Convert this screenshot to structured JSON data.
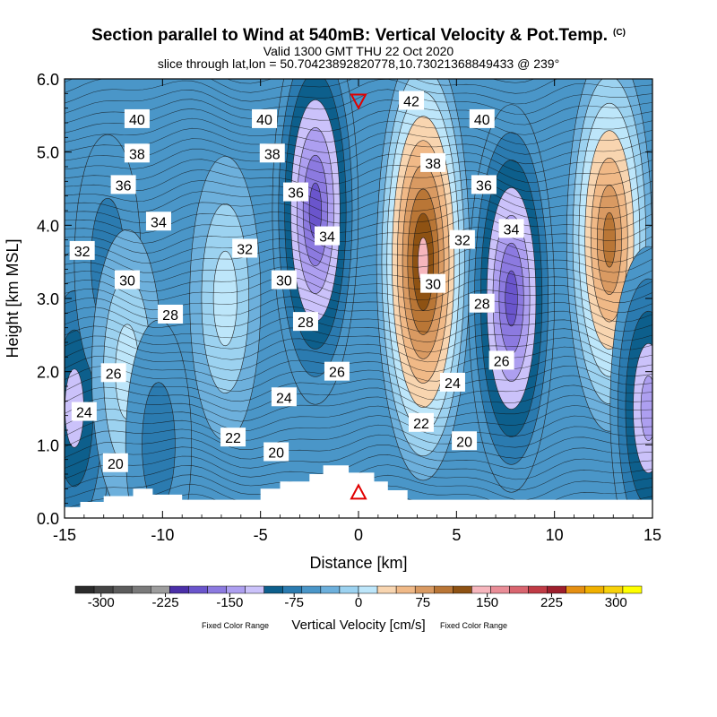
{
  "header": {
    "title": "Section parallel to Wind at 540mB: Vertical Velocity & Pot.Temp.",
    "copyright": "(C)",
    "valid": "Valid 1300 GMT THU 22 Oct 2020",
    "slice": "slice through lat,lon = 50.70423892820778,10.73021368849433 @ 239°"
  },
  "chart_data": {
    "type": "contour",
    "xlabel": "Distance [km]",
    "ylabel": "Height [km MSL]",
    "xlim": [
      -15,
      15
    ],
    "ylim": [
      0,
      6
    ],
    "xticks": [
      "-15",
      "-10",
      "-5",
      "0",
      "5",
      "10",
      "15"
    ],
    "yticks": [
      "0.0",
      "1.0",
      "2.0",
      "3.0",
      "4.0",
      "5.0",
      "6.0"
    ],
    "markers": {
      "down_triangle": {
        "x": 0,
        "y": 5.7
      },
      "up_triangle": {
        "x": 0,
        "y": 0.35
      }
    },
    "vertical_velocity_cores_cm_s": [
      {
        "x": -14.5,
        "y": 1.5,
        "value": -100
      },
      {
        "x": -12.8,
        "y": 3.5,
        "value": -40
      },
      {
        "x": -11.8,
        "y": 2.0,
        "value": 70
      },
      {
        "x": -10.2,
        "y": 1.0,
        "value": -35
      },
      {
        "x": -6.8,
        "y": 3.0,
        "value": 70
      },
      {
        "x": -2.2,
        "y": 4.2,
        "value": -175
      },
      {
        "x": 3.3,
        "y": 3.5,
        "value": 225
      },
      {
        "x": 7.8,
        "y": 3.0,
        "value": -175
      },
      {
        "x": 12.8,
        "y": 3.8,
        "value": 170
      },
      {
        "x": 14.8,
        "y": 1.5,
        "value": -110
      }
    ],
    "theta_labels": [
      {
        "text": "40",
        "x": -11.3,
        "y": 5.45
      },
      {
        "text": "38",
        "x": -11.3,
        "y": 4.98
      },
      {
        "text": "36",
        "x": -12.0,
        "y": 4.55
      },
      {
        "text": "34",
        "x": -10.2,
        "y": 4.05
      },
      {
        "text": "32",
        "x": -14.1,
        "y": 3.65
      },
      {
        "text": "30",
        "x": -11.8,
        "y": 3.25
      },
      {
        "text": "28",
        "x": -9.6,
        "y": 2.78
      },
      {
        "text": "26",
        "x": -12.5,
        "y": 1.98
      },
      {
        "text": "24",
        "x": -14.0,
        "y": 1.45
      },
      {
        "text": "20",
        "x": -12.4,
        "y": 0.75
      },
      {
        "text": "32",
        "x": -5.8,
        "y": 3.68
      },
      {
        "text": "30",
        "x": -3.8,
        "y": 3.25
      },
      {
        "text": "28",
        "x": -2.7,
        "y": 2.68
      },
      {
        "text": "24",
        "x": -3.8,
        "y": 1.65
      },
      {
        "text": "22",
        "x": -6.4,
        "y": 1.1
      },
      {
        "text": "20",
        "x": -4.2,
        "y": 0.9
      },
      {
        "text": "26",
        "x": -1.1,
        "y": 2.0
      },
      {
        "text": "40",
        "x": -4.8,
        "y": 5.45
      },
      {
        "text": "38",
        "x": -4.4,
        "y": 4.98
      },
      {
        "text": "36",
        "x": -3.2,
        "y": 4.45
      },
      {
        "text": "34",
        "x": -1.6,
        "y": 3.85
      },
      {
        "text": "42",
        "x": 2.7,
        "y": 5.7
      },
      {
        "text": "38",
        "x": 3.8,
        "y": 4.85
      },
      {
        "text": "32",
        "x": 5.3,
        "y": 3.8
      },
      {
        "text": "30",
        "x": 3.8,
        "y": 3.2
      },
      {
        "text": "24",
        "x": 4.8,
        "y": 1.85
      },
      {
        "text": "22",
        "x": 3.2,
        "y": 1.3
      },
      {
        "text": "20",
        "x": 5.4,
        "y": 1.05
      },
      {
        "text": "40",
        "x": 6.3,
        "y": 5.45
      },
      {
        "text": "36",
        "x": 6.4,
        "y": 4.55
      },
      {
        "text": "34",
        "x": 7.8,
        "y": 3.95
      },
      {
        "text": "28",
        "x": 6.3,
        "y": 2.93
      },
      {
        "text": "26",
        "x": 7.3,
        "y": 2.15
      }
    ]
  },
  "colorbar": {
    "label": "Vertical Velocity [cm/s]",
    "fixed_left": "Fixed Color Range",
    "fixed_right": "Fixed Color Range",
    "ticks": [
      "-300",
      "-225",
      "-150",
      "-75",
      "0",
      "75",
      "150",
      "225",
      "300"
    ],
    "range": [
      -330,
      330
    ],
    "step": 25,
    "colors": [
      "#2b2b2b",
      "#444444",
      "#5c5c5c",
      "#7a7a7a",
      "#9d9d9d",
      "#4b2fa8",
      "#6a55cc",
      "#8c7ae0",
      "#ad9ff0",
      "#cbc2fa",
      "#0d5f8c",
      "#2b7bb0",
      "#4a96c8",
      "#6db0dc",
      "#9cd2f0",
      "#bde6fa",
      "#f8d5b0",
      "#f0b987",
      "#d99a62",
      "#b97636",
      "#8e5213",
      "#f6b6bd",
      "#e98d97",
      "#d9656f",
      "#c03b45",
      "#9e1f2d",
      "#e58f12",
      "#f0b000",
      "#f7d10a",
      "#ffff00"
    ]
  }
}
